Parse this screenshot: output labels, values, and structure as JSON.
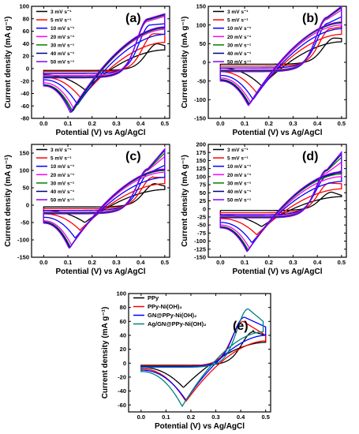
{
  "figure": {
    "xlabel": "Potential (V) vs Ag/AgCl",
    "ylabel": "Current density (mA g⁻¹)"
  },
  "colors": {
    "3 mV s⁻¹": "#000000",
    "5 mV s⁻¹": "#ff0000",
    "10 mV s⁻¹": "#0000ff",
    "20 mV s⁻¹": "#ff00ff",
    "30 mV s⁻¹": "#008000",
    "40 mV s⁻¹": "#000080",
    "50 mV s⁻¹": "#8000ff",
    "PPy": "#000000",
    "PPy-Ni(OH)₂": "#ff0000",
    "GN@PPy-Ni(OH)₂": "#0000ff",
    "Ag/GN@PPy-Ni(OH)₂": "#008080"
  },
  "chart_data": [
    {
      "type": "line",
      "label": "(a)",
      "xlim": [
        -0.05,
        0.52
      ],
      "ylim": [
        -80,
        100
      ],
      "xticks": [
        0.0,
        0.1,
        0.2,
        0.3,
        0.4,
        0.5
      ],
      "yticks": [
        -80,
        -60,
        -40,
        -20,
        0,
        20,
        40,
        60,
        80,
        100
      ],
      "legend_position": "top-left",
      "series": [
        {
          "name": "3 mV s⁻¹",
          "anodic_peak": [
            0.47,
            40
          ],
          "cathodic_peak": [
            0.17,
            -34
          ],
          "vertex_top": [
            0.5,
            37
          ],
          "vertex_bottom": [
            0.5,
            30
          ],
          "start_top": -3,
          "start_bottom": -10
        },
        {
          "name": "5 mV s⁻¹",
          "anodic_peak": [
            0.455,
            56
          ],
          "cathodic_peak": [
            0.155,
            -48
          ],
          "vertex_top": [
            0.5,
            55
          ],
          "vertex_bottom": [
            0.5,
            42
          ],
          "start_top": -5,
          "start_bottom": -14
        },
        {
          "name": "10 mV s⁻¹",
          "anodic_peak": [
            0.44,
            70
          ],
          "cathodic_peak": [
            0.14,
            -58
          ],
          "vertex_top": [
            0.5,
            72
          ],
          "vertex_bottom": [
            0.5,
            55
          ],
          "start_top": -8,
          "start_bottom": -18
        },
        {
          "name": "20 mV s⁻¹",
          "anodic_peak": [
            0.43,
            76
          ],
          "cathodic_peak": [
            0.125,
            -65
          ],
          "vertex_top": [
            0.5,
            84
          ],
          "vertex_bottom": [
            0.5,
            63
          ],
          "start_top": -11,
          "start_bottom": -23
        },
        {
          "name": "30 mV s⁻¹",
          "anodic_peak": [
            0.43,
            78
          ],
          "cathodic_peak": [
            0.12,
            -69
          ],
          "vertex_top": [
            0.5,
            86
          ],
          "vertex_bottom": [
            0.5,
            65
          ],
          "start_top": -13,
          "start_bottom": -26
        },
        {
          "name": "40 mV s⁻¹",
          "anodic_peak": [
            0.43,
            79
          ],
          "cathodic_peak": [
            0.115,
            -70
          ],
          "vertex_top": [
            0.5,
            87
          ],
          "vertex_bottom": [
            0.5,
            66
          ],
          "start_top": -14,
          "start_bottom": -27
        },
        {
          "name": "50 mV s⁻¹",
          "anodic_peak": [
            0.43,
            80
          ],
          "cathodic_peak": [
            0.11,
            -71
          ],
          "vertex_top": [
            0.5,
            88
          ],
          "vertex_bottom": [
            0.5,
            67
          ],
          "start_top": -15,
          "start_bottom": -28
        }
      ]
    },
    {
      "type": "line",
      "label": "(b)",
      "xlim": [
        -0.05,
        0.52
      ],
      "ylim": [
        -150,
        150
      ],
      "xticks": [
        0.0,
        0.1,
        0.2,
        0.3,
        0.4,
        0.5
      ],
      "yticks": [
        -150,
        -100,
        -50,
        0,
        50,
        100,
        150
      ],
      "legend_position": "top-left",
      "series": [
        {
          "name": "3 mV s⁻¹",
          "anodic_peak": [
            0.47,
            65
          ],
          "cathodic_peak": [
            0.17,
            -63
          ],
          "vertex_top": [
            0.5,
            64
          ],
          "vertex_bottom": [
            0.5,
            55
          ],
          "start_top": -5,
          "start_bottom": -15
        },
        {
          "name": "5 mV s⁻¹",
          "anodic_peak": [
            0.455,
            90
          ],
          "cathodic_peak": [
            0.15,
            -82
          ],
          "vertex_top": [
            0.5,
            95
          ],
          "vertex_bottom": [
            0.5,
            75
          ],
          "start_top": -10,
          "start_bottom": -25
        },
        {
          "name": "10 mV s⁻¹",
          "anodic_peak": [
            0.445,
            105
          ],
          "cathodic_peak": [
            0.135,
            -100
          ],
          "vertex_top": [
            0.5,
            122
          ],
          "vertex_bottom": [
            0.5,
            90
          ],
          "start_top": -15,
          "start_bottom": -35
        },
        {
          "name": "20 mV s⁻¹",
          "anodic_peak": [
            0.44,
            115
          ],
          "cathodic_peak": [
            0.125,
            -108
          ],
          "vertex_top": [
            0.5,
            140
          ],
          "vertex_bottom": [
            0.5,
            100
          ],
          "start_top": -20,
          "start_bottom": -42
        },
        {
          "name": "30 mV s⁻¹",
          "anodic_peak": [
            0.44,
            118
          ],
          "cathodic_peak": [
            0.12,
            -112
          ],
          "vertex_top": [
            0.5,
            146
          ],
          "vertex_bottom": [
            0.5,
            105
          ],
          "start_top": -22,
          "start_bottom": -46
        },
        {
          "name": "40 mV s⁻¹",
          "anodic_peak": [
            0.44,
            120
          ],
          "cathodic_peak": [
            0.118,
            -114
          ],
          "vertex_top": [
            0.5,
            148
          ],
          "vertex_bottom": [
            0.5,
            107
          ],
          "start_top": -24,
          "start_bottom": -48
        },
        {
          "name": "50 mV s⁻¹",
          "anodic_peak": [
            0.44,
            121
          ],
          "cathodic_peak": [
            0.115,
            -116
          ],
          "vertex_top": [
            0.5,
            150
          ],
          "vertex_bottom": [
            0.5,
            108
          ],
          "start_top": -25,
          "start_bottom": -50
        }
      ]
    },
    {
      "type": "line",
      "label": "(c)",
      "xlim": [
        -0.05,
        0.52
      ],
      "ylim": [
        -150,
        175
      ],
      "xticks": [
        0.0,
        0.1,
        0.2,
        0.3,
        0.4,
        0.5
      ],
      "yticks": [
        -150,
        -100,
        -50,
        0,
        50,
        100,
        150
      ],
      "legend_position": "top-left",
      "series": [
        {
          "name": "3 mV s⁻¹",
          "anodic_peak": [
            0.46,
            62
          ],
          "cathodic_peak": [
            0.17,
            -50
          ],
          "vertex_top": [
            0.5,
            55
          ],
          "vertex_bottom": [
            0.5,
            45
          ],
          "start_top": -5,
          "start_bottom": -15
        },
        {
          "name": "5 mV s⁻¹",
          "anodic_peak": [
            0.45,
            80
          ],
          "cathodic_peak": [
            0.15,
            -72
          ],
          "vertex_top": [
            0.5,
            80
          ],
          "vertex_bottom": [
            0.5,
            62
          ],
          "start_top": -10,
          "start_bottom": -25
        },
        {
          "name": "10 mV s⁻¹",
          "anodic_peak": [
            0.44,
            95
          ],
          "cathodic_peak": [
            0.13,
            -95
          ],
          "vertex_top": [
            0.5,
            115
          ],
          "vertex_bottom": [
            0.5,
            80
          ],
          "start_top": -15,
          "start_bottom": -35
        },
        {
          "name": "20 mV s⁻¹",
          "anodic_peak": [
            0.43,
            100
          ],
          "cathodic_peak": [
            0.115,
            -115
          ],
          "vertex_top": [
            0.5,
            140
          ],
          "vertex_bottom": [
            0.5,
            95
          ],
          "start_top": -20,
          "start_bottom": -45
        },
        {
          "name": "30 mV s⁻¹",
          "anodic_peak": [
            0.43,
            102
          ],
          "cathodic_peak": [
            0.11,
            -120
          ],
          "vertex_top": [
            0.5,
            150
          ],
          "vertex_bottom": [
            0.5,
            100
          ],
          "start_top": -22,
          "start_bottom": -48
        },
        {
          "name": "40 mV s⁻¹",
          "anodic_peak": [
            0.43,
            104
          ],
          "cathodic_peak": [
            0.108,
            -123
          ],
          "vertex_top": [
            0.5,
            158
          ],
          "vertex_bottom": [
            0.5,
            102
          ],
          "start_top": -24,
          "start_bottom": -50
        },
        {
          "name": "50 mV s⁻¹",
          "anodic_peak": [
            0.43,
            105
          ],
          "cathodic_peak": [
            0.105,
            -125
          ],
          "vertex_top": [
            0.5,
            162
          ],
          "vertex_bottom": [
            0.5,
            104
          ],
          "start_top": -25,
          "start_bottom": -52
        }
      ]
    },
    {
      "type": "line",
      "label": "(d)",
      "xlim": [
        -0.05,
        0.52
      ],
      "ylim": [
        -150,
        200
      ],
      "xticks": [
        0.0,
        0.1,
        0.2,
        0.3,
        0.4,
        0.5
      ],
      "yticks": [
        -150,
        -125,
        -100,
        -75,
        -50,
        -25,
        0,
        25,
        50,
        75,
        100,
        125,
        150,
        175,
        200
      ],
      "legend_position": "top-left",
      "series": [
        {
          "name": "3 mV s⁻¹",
          "anodic_peak": [
            0.46,
            52
          ],
          "cathodic_peak": [
            0.17,
            -55
          ],
          "vertex_top": [
            0.5,
            42
          ],
          "vertex_bottom": [
            0.5,
            38
          ],
          "start_top": -5,
          "start_bottom": -18
        },
        {
          "name": "5 mV s⁻¹",
          "anodic_peak": [
            0.45,
            80
          ],
          "cathodic_peak": [
            0.15,
            -80
          ],
          "vertex_top": [
            0.5,
            78
          ],
          "vertex_bottom": [
            0.5,
            62
          ],
          "start_top": -12,
          "start_bottom": -30
        },
        {
          "name": "10 mV s⁻¹",
          "anodic_peak": [
            0.44,
            100
          ],
          "cathodic_peak": [
            0.13,
            -105
          ],
          "vertex_top": [
            0.5,
            118
          ],
          "vertex_bottom": [
            0.5,
            85
          ],
          "start_top": -18,
          "start_bottom": -42
        },
        {
          "name": "20 mV s⁻¹",
          "anodic_peak": [
            0.44,
            112
          ],
          "cathodic_peak": [
            0.12,
            -122
          ],
          "vertex_top": [
            0.5,
            145
          ],
          "vertex_bottom": [
            0.5,
            100
          ],
          "start_top": -22,
          "start_bottom": -50
        },
        {
          "name": "30 mV s⁻¹",
          "anodic_peak": [
            0.44,
            118
          ],
          "cathodic_peak": [
            0.115,
            -128
          ],
          "vertex_top": [
            0.5,
            160
          ],
          "vertex_bottom": [
            0.5,
            108
          ],
          "start_top": -25,
          "start_bottom": -55
        },
        {
          "name": "40 mV s⁻¹",
          "anodic_peak": [
            0.44,
            120
          ],
          "cathodic_peak": [
            0.112,
            -131
          ],
          "vertex_top": [
            0.5,
            170
          ],
          "vertex_bottom": [
            0.5,
            112
          ],
          "start_top": -27,
          "start_bottom": -57
        },
        {
          "name": "50 mV s⁻¹",
          "anodic_peak": [
            0.44,
            122
          ],
          "cathodic_peak": [
            0.11,
            -133
          ],
          "vertex_top": [
            0.5,
            176
          ],
          "vertex_bottom": [
            0.5,
            115
          ],
          "start_top": -28,
          "start_bottom": -59
        }
      ]
    },
    {
      "type": "line",
      "label": "(e)",
      "xlim": [
        -0.05,
        0.52
      ],
      "ylim": [
        -70,
        100
      ],
      "xticks": [
        0.0,
        0.1,
        0.2,
        0.3,
        0.4,
        0.5
      ],
      "yticks": [
        -60,
        -40,
        -20,
        0,
        20,
        40,
        60,
        80,
        100
      ],
      "legend_position": "top-left",
      "series": [
        {
          "name": "PPy",
          "anodic_peak": [
            0.45,
            45
          ],
          "cathodic_peak": [
            0.17,
            -35
          ],
          "vertex_top": [
            0.5,
            40
          ],
          "vertex_bottom": [
            0.5,
            30
          ],
          "start_top": -3,
          "start_bottom": -6
        },
        {
          "name": "PPy-Ni(OH)₂",
          "anodic_peak": [
            0.41,
            60
          ],
          "cathodic_peak": [
            0.18,
            -55
          ],
          "vertex_top": [
            0.5,
            40
          ],
          "vertex_bottom": [
            0.5,
            32
          ],
          "start_top": -4,
          "start_bottom": -8
        },
        {
          "name": "GN@PPy-Ni(OH)₂",
          "anodic_peak": [
            0.415,
            66
          ],
          "cathodic_peak": [
            0.18,
            -53
          ],
          "vertex_top": [
            0.5,
            52
          ],
          "vertex_bottom": [
            0.5,
            40
          ],
          "start_top": -5,
          "start_bottom": -10
        },
        {
          "name": "Ag/GN@PPy-Ni(OH)₂",
          "anodic_peak": [
            0.43,
            78
          ],
          "cathodic_peak": [
            0.165,
            -62
          ],
          "vertex_top": [
            0.49,
            60
          ],
          "vertex_bottom": [
            0.49,
            45
          ],
          "start_top": -6,
          "start_bottom": -12
        }
      ]
    }
  ]
}
